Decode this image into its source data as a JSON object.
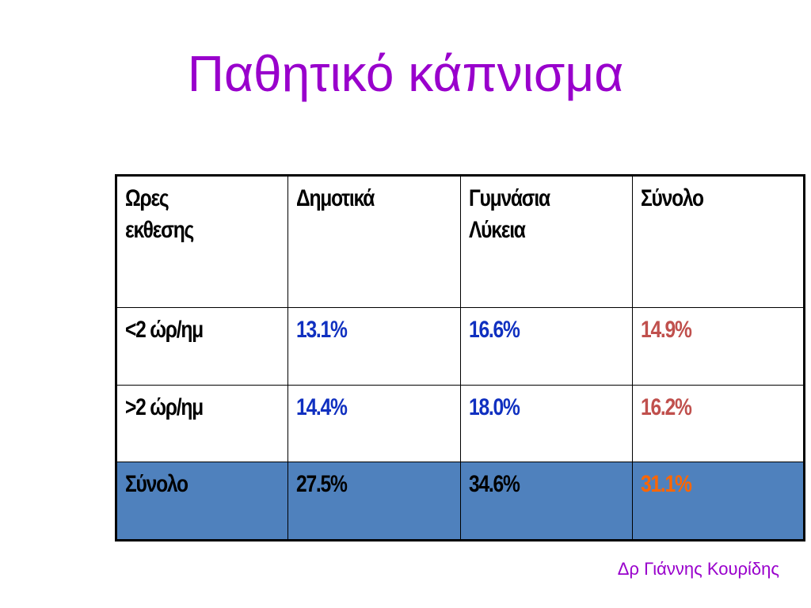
{
  "title": "Παθητικό κάπνισμα",
  "table": {
    "header": [
      "Ωρες εκθεσης",
      "Δημοτικά",
      "Γυμνάσια Λύκεια",
      "Σύνολο"
    ],
    "rows": [
      [
        "<2 ώρ/ημ",
        "13.1%",
        "16.6%",
        "14.9%"
      ],
      [
        ">2 ώρ/ημ",
        "14.4%",
        "18.0%",
        "16.2%"
      ],
      [
        "Σύνολο",
        "27.5%",
        "34.6%",
        "31.1%"
      ]
    ]
  },
  "footer": "Δρ Γιάννης Κουρίδης"
}
